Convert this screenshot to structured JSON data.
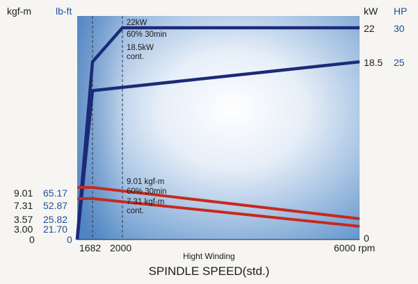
{
  "chart_data": {
    "type": "line",
    "title": "SPINDLE SPEED(std.)",
    "subtitle": "Hight Winding",
    "xlabel": "rpm",
    "x_ticks": [
      "1682",
      "2000",
      "6000 rpm"
    ],
    "xlim": [
      0,
      6000
    ],
    "left_units": {
      "kgfm": "kgf-m",
      "lbft": "lb-ft"
    },
    "right_units": {
      "kw": "kW",
      "hp": "HP"
    },
    "torque_ticks": [
      {
        "kgfm": "9.01",
        "lbft": "65.17"
      },
      {
        "kgfm": "7.31",
        "lbft": "52.87"
      },
      {
        "kgfm": "3.57",
        "lbft": "25.82"
      },
      {
        "kgfm": "3.00",
        "lbft": "21.70"
      },
      {
        "kgfm": "0",
        "lbft": "0"
      }
    ],
    "power_ticks": [
      {
        "kw": "22",
        "hp": "30"
      },
      {
        "kw": "18.5",
        "hp": "25"
      },
      {
        "kw": "0",
        "hp": ""
      }
    ],
    "power_ylim": [
      0,
      22
    ],
    "torque_ylim": [
      0,
      9.01
    ],
    "series": [
      {
        "name": "22kW 60% 30min",
        "kind": "power",
        "x": [
          0,
          1682,
          2000,
          6000
        ],
        "y": [
          0,
          18.5,
          22,
          22
        ]
      },
      {
        "name": "18.5kW cont.",
        "kind": "power",
        "x": [
          0,
          1682,
          6000
        ],
        "y": [
          0,
          15.5,
          18.5
        ]
      },
      {
        "name": "9.01 kgf-m 60% 30min",
        "kind": "torque",
        "x": [
          0,
          1682,
          6000
        ],
        "y": [
          9.01,
          9.01,
          3.57
        ]
      },
      {
        "name": "7.31 kgf-m cont.",
        "kind": "torque",
        "x": [
          0,
          1682,
          6000
        ],
        "y": [
          7.31,
          7.31,
          3.0
        ]
      }
    ],
    "annotations": {
      "p1_line1": "22kW",
      "p1_line2": "60% 30min",
      "p2_line1": "18.5kW",
      "p2_line2": "cont.",
      "t1_line1": "9.01 kgf-m",
      "t1_line2": "60% 30min",
      "t2_line1": "7.31 kgf-m",
      "t2_line2": "cont."
    },
    "colors": {
      "power": "#1c2a78",
      "torque": "#c62a1e",
      "bg_blue": "#6fa3d6",
      "lb_ft": "#1f4e9e"
    }
  }
}
